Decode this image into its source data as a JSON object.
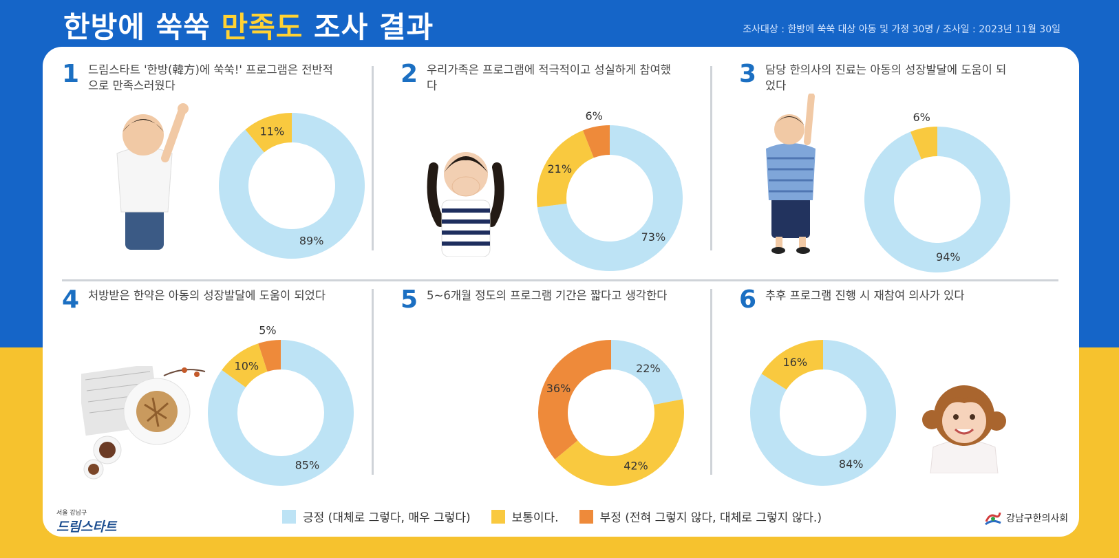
{
  "header": {
    "title_part1": "한방에 쑥쑥 ",
    "title_accent": "만족도",
    "title_part2": " 조사 결과",
    "subtitle": "조사대상 : 한방에 쑥쑥 대상 아동 및 가정 30명 / 조사일 : 2023년 11월 30일"
  },
  "colors": {
    "positive": "#bde3f5",
    "neutral": "#f9c93f",
    "negative": "#ee8a3a",
    "number": "#1b6fc2"
  },
  "legend": {
    "positive": "긍정 (대체로 그렇다, 매우 그렇다)",
    "neutral": "보통이다.",
    "negative": "부정 (전혀 그렇지 않다, 대체로 그렇지 않다.)"
  },
  "logos": {
    "left_small": "서울 강남구",
    "left_big": "드림스타트",
    "right": "강남구한의사회"
  },
  "questions": [
    {
      "number": "1",
      "text": "드림스타트 '한방(韓方)에 쑥쑥!' 프로그램은 전반적으로 만족스러웠다"
    },
    {
      "number": "2",
      "text": "우리가족은 프로그램에 적극적이고 성실하게 참여했다"
    },
    {
      "number": "3",
      "text": "담당 한의사의 진료는 아동의 성장발달에 도움이 되었다"
    },
    {
      "number": "4",
      "text": "처방받은 한약은 아동의 성장발달에 도움이 되었다"
    },
    {
      "number": "5",
      "text": "5~6개월 정도의 프로그램 기간은 짧다고 생각한다"
    },
    {
      "number": "6",
      "text": "추후 프로그램 진행 시 재참여 의사가 있다"
    }
  ],
  "chart_data": [
    {
      "type": "pie",
      "question": "1",
      "labels": [
        "긍정",
        "보통이다",
        "부정"
      ],
      "values": [
        89,
        11,
        0
      ]
    },
    {
      "type": "pie",
      "question": "2",
      "labels": [
        "긍정",
        "보통이다",
        "부정"
      ],
      "values": [
        73,
        21,
        6
      ]
    },
    {
      "type": "pie",
      "question": "3",
      "labels": [
        "긍정",
        "보통이다",
        "부정"
      ],
      "values": [
        94,
        6,
        0
      ]
    },
    {
      "type": "pie",
      "question": "4",
      "labels": [
        "긍정",
        "보통이다",
        "부정"
      ],
      "values": [
        85,
        10,
        5
      ]
    },
    {
      "type": "pie",
      "question": "5",
      "labels": [
        "긍정",
        "보통이다",
        "부정"
      ],
      "values": [
        22,
        42,
        36
      ]
    },
    {
      "type": "pie",
      "question": "6",
      "labels": [
        "긍정",
        "보통이다",
        "부정"
      ],
      "values": [
        84,
        16,
        0
      ]
    }
  ]
}
